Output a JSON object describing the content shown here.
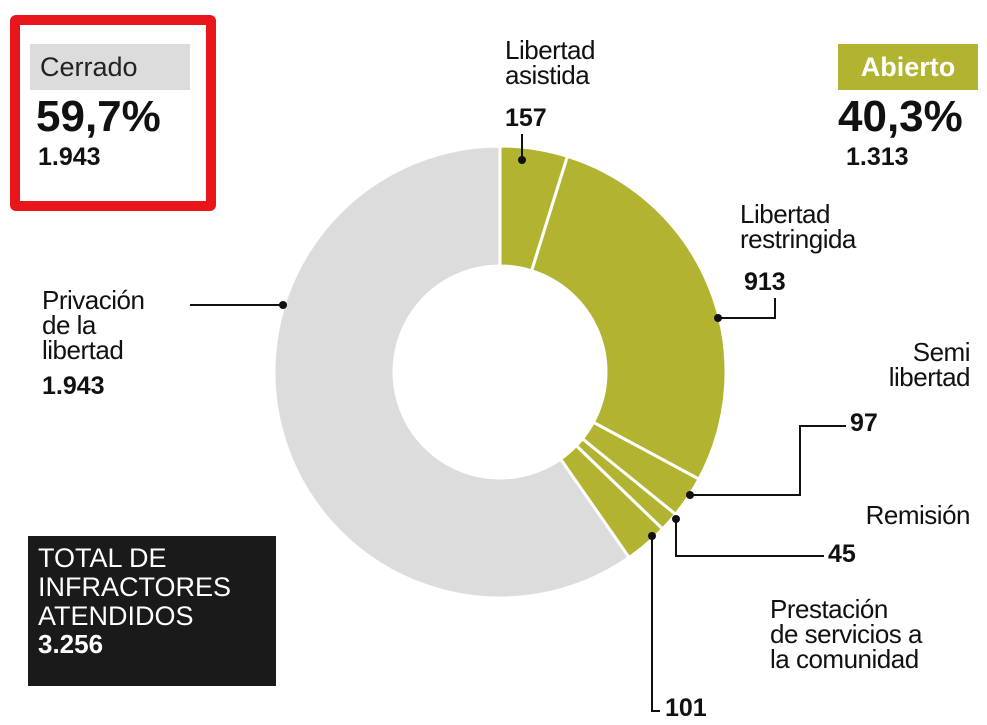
{
  "chart_data": {
    "type": "pie",
    "donut": true,
    "categories": [
      "Libertad\nasistida",
      "Libertad\nrestringida",
      "Semi\nlibertad",
      "Remisión",
      "Prestación\nde servicios a\nla comunidad",
      "Privación\nde la\nlibertad"
    ],
    "values": [
      157,
      913,
      97,
      45,
      101,
      1943
    ],
    "value_labels": [
      "157",
      "913",
      "97",
      "45",
      "101",
      "1.943"
    ],
    "colors": [
      "#b2b431",
      "#b2b431",
      "#b2b431",
      "#b2b431",
      "#b2b431",
      "#dcdcdc"
    ],
    "groups": [
      {
        "name": "Cerrado",
        "percent": 59.7,
        "percent_label": "59,7%",
        "count": 1943,
        "count_label": "1.943"
      },
      {
        "name": "Abierto",
        "percent": 40.3,
        "percent_label": "40,3%",
        "count": 1313,
        "count_label": "1.313"
      }
    ],
    "total": {
      "label": "TOTAL DE\nINFRACTORES\nATENDIDOS",
      "value": 3256,
      "value_label": "3.256"
    }
  }
}
